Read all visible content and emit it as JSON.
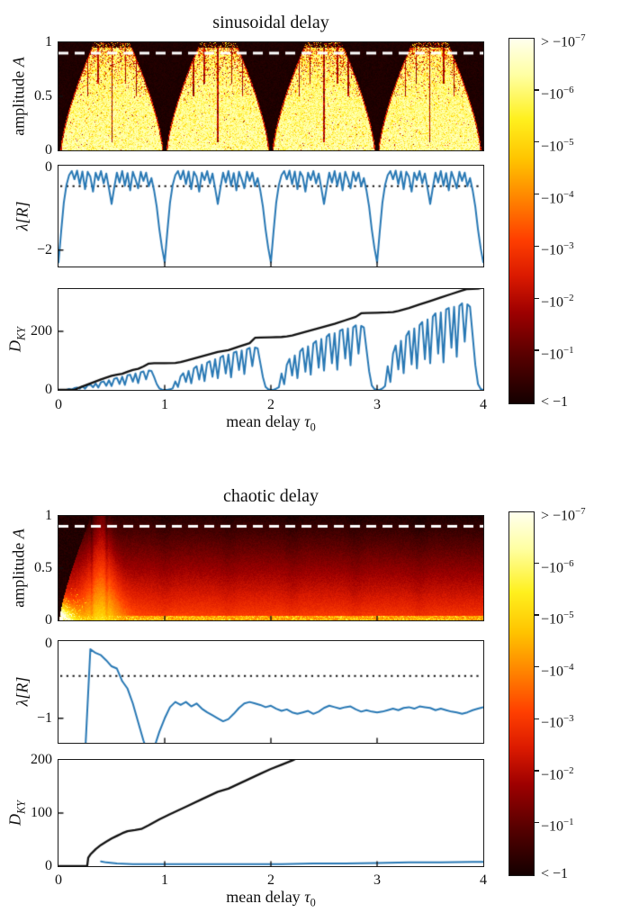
{
  "axis_labels": {
    "amplitude_text": "amplitude",
    "amplitude_var": "A",
    "lambda": "λ[R]",
    "d_base": "D",
    "d_sub": "KY",
    "xlabel_text": "mean delay",
    "xlabel_var": "τ",
    "xlabel_sub": "0"
  },
  "colors": {
    "background": "#FFFFFF",
    "frame": "#1A1A1A",
    "line_blue": "#2878B4",
    "line_black": "#111111",
    "threshold_dot": "#111111",
    "heatmap_dash": "#FFFFFF",
    "colormap_stops": [
      [
        0,
        "#FFFFEE"
      ],
      [
        0.1,
        "#FFFFA2"
      ],
      [
        0.22,
        "#FFF01E"
      ],
      [
        0.33,
        "#FFC400"
      ],
      [
        0.45,
        "#FF7D00"
      ],
      [
        0.55,
        "#FF3F00"
      ],
      [
        0.65,
        "#DB1A00"
      ],
      [
        0.75,
        "#9E0000"
      ],
      [
        0.87,
        "#570000"
      ],
      [
        1,
        "#140000"
      ]
    ]
  },
  "colorbar": {
    "tick_labels": [
      {
        "text": "> −10",
        "sup": "−7"
      },
      {
        "text": "−10",
        "sup": "−6"
      },
      {
        "text": "−10",
        "sup": "−5"
      },
      {
        "text": "−10",
        "sup": "−4"
      },
      {
        "text": "−10",
        "sup": "−3"
      },
      {
        "text": "−10",
        "sup": "−2"
      },
      {
        "text": "−10",
        "sup": "−1"
      },
      {
        "text": "< −1",
        "sup": ""
      }
    ]
  },
  "chart_data": [
    {
      "type": "heatmap",
      "title": "sinusoidal delay",
      "xlabel": "mean delay τ₀",
      "ylabel": "amplitude A",
      "xlim": [
        0,
        4
      ],
      "ylim": [
        0,
        1
      ],
      "xticks": [
        1,
        2,
        3
      ],
      "yticks": [
        1,
        0.5,
        0
      ],
      "ytick_labels": [
        "1",
        "0.5",
        "0"
      ],
      "dashed_line_A": 0.9,
      "colorbar_scale": "log of −λ[R], from > −10⁻⁷ (light) to < −1 (dark)",
      "pattern": "sin",
      "render_params": {
        "wedge_centers": [
          0,
          1,
          2,
          3,
          4
        ],
        "wedge_base": 0.015,
        "wedge_scale": 0.315,
        "wedge_exp": 1.4,
        "top_band_A": 0.955,
        "streaks": [
          [
            0.27,
            0.5
          ],
          [
            0.37,
            0.62
          ],
          [
            0.5,
            0.07
          ],
          [
            0.63,
            0.62
          ],
          [
            0.73,
            0.5
          ]
        ]
      }
    },
    {
      "type": "line",
      "ylabel": "λ[R]",
      "xlim": [
        0,
        4
      ],
      "ylim": [
        -2.4,
        0.05
      ],
      "xticks": [
        1,
        2,
        3
      ],
      "yticks": [
        0,
        -2
      ],
      "ytick_labels": [
        "0",
        "−2"
      ],
      "threshold": -0.45,
      "series": [
        {
          "name": "lyapunov_exponent",
          "color": "line_blue",
          "width": 2,
          "x0": 0,
          "dx": 0.025,
          "values": [
            -2.3,
            -1.55,
            -0.85,
            -0.42,
            -0.18,
            -0.08,
            -0.28,
            -0.07,
            -0.4,
            -0.09,
            -0.52,
            -0.1,
            -0.22,
            -0.58,
            -0.12,
            -0.3,
            -0.08,
            -0.38,
            -0.14,
            -0.5,
            -0.88,
            -0.48,
            -0.12,
            -0.36,
            -0.08,
            -0.44,
            -0.13,
            -0.55,
            -0.1,
            -0.28,
            -0.5,
            -0.1,
            -0.32,
            -0.12,
            -0.45,
            -0.25,
            -0.55,
            -0.95,
            -1.5,
            -1.95,
            -2.3,
            -1.55,
            -0.85,
            -0.42,
            -0.18,
            -0.08,
            -0.28,
            -0.07,
            -0.4,
            -0.09,
            -0.52,
            -0.1,
            -0.22,
            -0.58,
            -0.12,
            -0.3,
            -0.08,
            -0.38,
            -0.14,
            -0.5,
            -0.88,
            -0.48,
            -0.12,
            -0.36,
            -0.08,
            -0.44,
            -0.13,
            -0.55,
            -0.1,
            -0.28,
            -0.5,
            -0.1,
            -0.32,
            -0.12,
            -0.45,
            -0.25,
            -0.55,
            -0.95,
            -1.5,
            -1.95,
            -2.3,
            -1.55,
            -0.85,
            -0.42,
            -0.18,
            -0.08,
            -0.28,
            -0.07,
            -0.4,
            -0.09,
            -0.52,
            -0.1,
            -0.22,
            -0.58,
            -0.12,
            -0.3,
            -0.08,
            -0.38,
            -0.14,
            -0.5,
            -0.88,
            -0.48,
            -0.12,
            -0.36,
            -0.08,
            -0.44,
            -0.13,
            -0.55,
            -0.1,
            -0.28,
            -0.5,
            -0.1,
            -0.32,
            -0.12,
            -0.45,
            -0.25,
            -0.55,
            -0.95,
            -1.5,
            -1.95,
            -2.3,
            -1.55,
            -0.85,
            -0.42,
            -0.18,
            -0.08,
            -0.28,
            -0.07,
            -0.4,
            -0.09,
            -0.52,
            -0.1,
            -0.22,
            -0.58,
            -0.12,
            -0.3,
            -0.08,
            -0.38,
            -0.14,
            -0.5,
            -0.88,
            -0.48,
            -0.12,
            -0.36,
            -0.08,
            -0.44,
            -0.13,
            -0.55,
            -0.1,
            -0.28,
            -0.5,
            -0.1,
            -0.32,
            -0.12,
            -0.45,
            -0.25,
            -0.55,
            -0.95,
            -1.5,
            -1.95,
            -2.3
          ]
        }
      ]
    },
    {
      "type": "line",
      "ylabel": "D_KY",
      "xlabel": "mean delay τ₀",
      "xlim": [
        0,
        4
      ],
      "ylim": [
        0,
        345
      ],
      "xticks": [
        1,
        2,
        3
      ],
      "xtick_values": [
        0,
        1,
        2,
        3,
        4
      ],
      "xtick_labels": [
        "0",
        "1",
        "2",
        "3",
        "4"
      ],
      "yticks": [
        200,
        0
      ],
      "ytick_labels": [
        "200",
        "0"
      ],
      "series": [
        {
          "name": "kaplan_yorke_dimension",
          "color": "line_blue",
          "width": 2,
          "x0": 0,
          "dx": 0.025,
          "values": [
            0,
            0,
            0,
            0,
            3,
            1,
            6,
            8,
            4,
            12,
            4,
            16,
            18,
            9,
            22,
            8,
            26,
            29,
            14,
            33,
            13,
            38,
            41,
            20,
            45,
            17,
            50,
            52,
            28,
            56,
            23,
            60,
            63,
            36,
            66,
            65,
            44,
            20,
            5,
            1,
            0,
            0,
            2,
            5,
            29,
            10,
            46,
            57,
            27,
            65,
            22,
            73,
            81,
            35,
            86,
            30,
            93,
            98,
            45,
            105,
            40,
            111,
            117,
            56,
            121,
            43,
            127,
            131,
            68,
            135,
            54,
            139,
            144,
            81,
            145,
            142,
            93,
            43,
            10,
            2,
            0,
            0,
            4,
            9,
            56,
            19,
            86,
            106,
            49,
            118,
            40,
            131,
            142,
            62,
            149,
            52,
            159,
            167,
            76,
            174,
            66,
            182,
            191,
            91,
            194,
            69,
            202,
            207,
            107,
            210,
            84,
            214,
            221,
            124,
            219,
            214,
            139,
            64,
            15,
            3,
            0,
            0,
            5,
            13,
            81,
            27,
            124,
            152,
            70,
            168,
            57,
            185,
            201,
            87,
            210,
            73,
            221,
            232,
            105,
            241,
            91,
            251,
            262,
            124,
            265,
            94,
            275,
            280,
            144,
            284,
            113,
            287,
            296,
            165,
            293,
            284,
            185,
            85,
            20,
            3,
            0
          ]
        },
        {
          "name": "dimension_upper_bound",
          "color": "line_black",
          "width": 2.3,
          "points": [
            [
              0,
              0
            ],
            [
              0.15,
              0
            ],
            [
              0.2,
              8
            ],
            [
              0.3,
              22
            ],
            [
              0.4,
              36
            ],
            [
              0.5,
              48
            ],
            [
              0.55,
              52
            ],
            [
              0.6,
              55
            ],
            [
              0.65,
              62
            ],
            [
              0.7,
              68
            ],
            [
              0.75,
              72
            ],
            [
              0.8,
              80
            ],
            [
              0.85,
              90
            ],
            [
              0.9,
              91
            ],
            [
              1.0,
              91
            ],
            [
              1.1,
              92
            ],
            [
              1.15,
              95
            ],
            [
              1.2,
              100
            ],
            [
              1.3,
              110
            ],
            [
              1.4,
              120
            ],
            [
              1.5,
              130
            ],
            [
              1.55,
              133
            ],
            [
              1.6,
              136
            ],
            [
              1.7,
              148
            ],
            [
              1.8,
              160
            ],
            [
              1.85,
              178
            ],
            [
              1.9,
              179
            ],
            [
              2.0,
              180
            ],
            [
              2.1,
              181
            ],
            [
              2.15,
              183
            ],
            [
              2.2,
              186
            ],
            [
              2.3,
              196
            ],
            [
              2.4,
              206
            ],
            [
              2.5,
              216
            ],
            [
              2.6,
              226
            ],
            [
              2.7,
              238
            ],
            [
              2.8,
              250
            ],
            [
              2.85,
              262
            ],
            [
              2.9,
              263
            ],
            [
              3.0,
              264
            ],
            [
              3.1,
              265
            ],
            [
              3.15,
              266
            ],
            [
              3.2,
              270
            ],
            [
              3.3,
              280
            ],
            [
              3.4,
              292
            ],
            [
              3.5,
              304
            ],
            [
              3.6,
              316
            ],
            [
              3.7,
              328
            ],
            [
              3.8,
              340
            ],
            [
              3.85,
              345
            ],
            [
              3.95,
              346
            ],
            [
              4.0,
              350
            ]
          ]
        }
      ]
    },
    {
      "type": "heatmap",
      "title": "chaotic delay",
      "xlabel": "mean delay τ₀",
      "ylabel": "amplitude A",
      "xlim": [
        0,
        4
      ],
      "ylim": [
        0,
        1
      ],
      "xticks": [
        1,
        2,
        3
      ],
      "yticks": [
        1,
        0.5,
        0
      ],
      "ytick_labels": [
        "1",
        "0.5",
        "0"
      ],
      "dashed_line_A": 0.9,
      "colorbar_scale": "log of −λ[R], from > −10⁻⁷ (light) to < −1 (dark)",
      "pattern": "cha",
      "render_params": {
        "plume_center": 0.4,
        "left_base": 0.005,
        "left_scale": 0.3,
        "left_exp": 1.3,
        "hotspot_tau": 0.3,
        "hotspot_A": 0.35,
        "filaments": [
          0.31,
          0.45
        ],
        "band_centers": [
          1.0,
          1.6,
          2.2,
          2.8,
          3.4
        ]
      }
    },
    {
      "type": "line",
      "ylabel": "λ[R]",
      "xlim": [
        0,
        4
      ],
      "ylim": [
        -1.33,
        0.04
      ],
      "xticks": [
        1,
        2,
        3
      ],
      "yticks": [
        0,
        -1
      ],
      "ytick_labels": [
        "0",
        "−1"
      ],
      "threshold": -0.43,
      "series": [
        {
          "name": "lyapunov_exponent",
          "color": "line_blue",
          "width": 2,
          "x0": 0,
          "dx": 0.05,
          "values": [
            null,
            null,
            null,
            null,
            null,
            -1.5,
            -0.07,
            -0.12,
            -0.15,
            -0.22,
            -0.3,
            -0.33,
            -0.5,
            -0.6,
            -0.8,
            -1.05,
            -1.3,
            -1.5,
            -1.4,
            -1.18,
            -1.0,
            -0.85,
            -0.78,
            -0.82,
            -0.78,
            -0.84,
            -0.8,
            -0.87,
            -0.92,
            -0.96,
            -1.0,
            -1.04,
            -1.01,
            -0.94,
            -0.86,
            -0.8,
            -0.78,
            -0.8,
            -0.82,
            -0.85,
            -0.83,
            -0.87,
            -0.9,
            -0.88,
            -0.92,
            -0.94,
            -0.92,
            -0.9,
            -0.94,
            -0.91,
            -0.86,
            -0.83,
            -0.85,
            -0.87,
            -0.85,
            -0.84,
            -0.88,
            -0.91,
            -0.89,
            -0.91,
            -0.92,
            -0.91,
            -0.89,
            -0.87,
            -0.89,
            -0.86,
            -0.85,
            -0.87,
            -0.84,
            -0.85,
            -0.86,
            -0.89,
            -0.87,
            -0.89,
            -0.91,
            -0.92,
            -0.94,
            -0.92,
            -0.89,
            -0.87,
            -0.85
          ]
        }
      ]
    },
    {
      "type": "line",
      "ylabel": "D_KY",
      "xlabel": "mean delay τ₀",
      "xlim": [
        0,
        4
      ],
      "ylim": [
        0,
        200
      ],
      "xticks": [
        1,
        2,
        3
      ],
      "xtick_values": [
        0,
        1,
        2,
        3,
        4
      ],
      "xtick_labels": [
        "0",
        "1",
        "2",
        "3",
        "4"
      ],
      "yticks": [
        200,
        100,
        0
      ],
      "ytick_labels": [
        "200",
        "100",
        "0"
      ],
      "series": [
        {
          "name": "kaplan_yorke_dimension",
          "color": "line_blue",
          "width": 2,
          "points": [
            [
              0.4,
              9
            ],
            [
              0.45,
              7
            ],
            [
              0.55,
              5
            ],
            [
              0.7,
              4
            ],
            [
              0.9,
              4
            ],
            [
              1.2,
              4
            ],
            [
              1.5,
              4
            ],
            [
              1.8,
              4
            ],
            [
              2.1,
              4
            ],
            [
              2.4,
              5
            ],
            [
              2.7,
              5
            ],
            [
              3.0,
              6
            ],
            [
              3.3,
              7
            ],
            [
              3.6,
              7
            ],
            [
              3.9,
              8
            ],
            [
              4.0,
              8
            ]
          ]
        },
        {
          "name": "dimension_upper_bound",
          "color": "line_black",
          "width": 2.3,
          "points": [
            [
              0,
              0
            ],
            [
              0.27,
              0
            ],
            [
              0.28,
              16
            ],
            [
              0.3,
              22
            ],
            [
              0.35,
              32
            ],
            [
              0.4,
              40
            ],
            [
              0.45,
              46
            ],
            [
              0.5,
              52
            ],
            [
              0.55,
              57
            ],
            [
              0.6,
              62
            ],
            [
              0.65,
              66
            ],
            [
              0.72,
              68
            ],
            [
              0.78,
              70
            ],
            [
              0.85,
              77
            ],
            [
              0.95,
              88
            ],
            [
              1.05,
              98
            ],
            [
              1.2,
              112
            ],
            [
              1.35,
              126
            ],
            [
              1.5,
              140
            ],
            [
              1.6,
              146
            ],
            [
              1.75,
              160
            ],
            [
              1.9,
              174
            ],
            [
              2.0,
              183
            ],
            [
              2.1,
              191
            ],
            [
              2.2,
              199
            ],
            [
              2.3,
              208
            ]
          ]
        }
      ]
    }
  ]
}
